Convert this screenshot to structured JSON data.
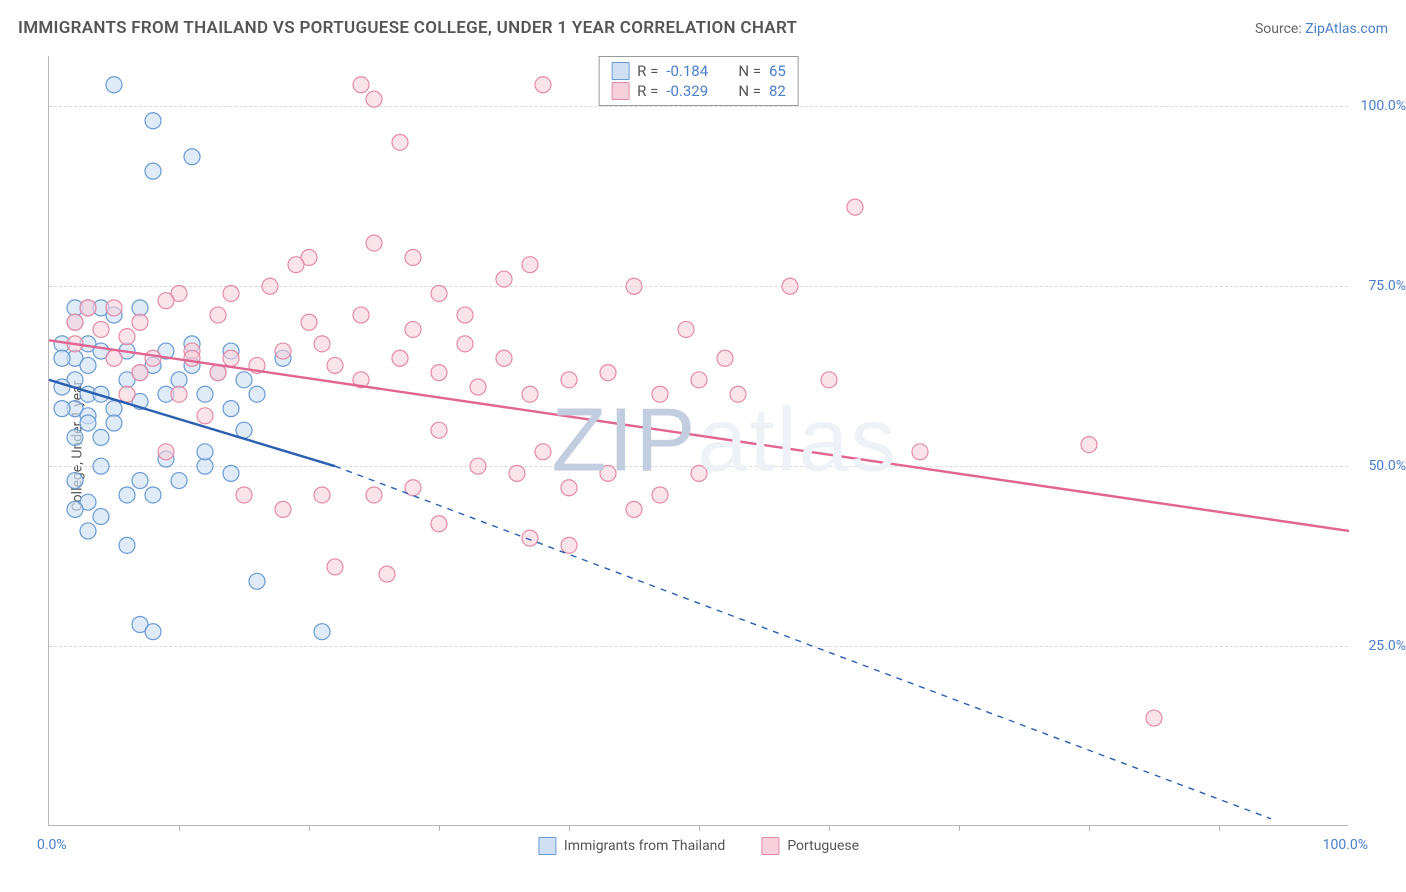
{
  "header": {
    "title": "IMMIGRANTS FROM THAILAND VS PORTUGUESE COLLEGE, UNDER 1 YEAR CORRELATION CHART",
    "source_prefix": "Source: ",
    "source_link": "ZipAtlas.com"
  },
  "watermark": {
    "dark": "ZIP",
    "light": "atlas"
  },
  "chart": {
    "type": "scatter",
    "ylabel": "College, Under 1 year",
    "xlim": [
      0,
      100
    ],
    "ylim": [
      0,
      107
    ],
    "ytick_values": [
      25,
      50,
      75,
      100
    ],
    "ytick_labels": [
      "25.0%",
      "50.0%",
      "75.0%",
      "100.0%"
    ],
    "xtick_values": [
      10,
      20,
      30,
      40,
      50,
      60,
      70,
      80,
      90
    ],
    "xlabel_0": "0.0%",
    "xlabel_100": "100.0%",
    "grid_color": "#d9d9d9",
    "axis_color": "#b6b6b6",
    "tick_label_color": "#4a7ec9",
    "background_color": "#ffffff",
    "marker_radius": 8,
    "marker_stroke_width": 1.2,
    "series": [
      {
        "key": "thailand",
        "label": "Immigrants from Thailand",
        "fill": "#cfe0f5",
        "stroke": "#6a9ad4",
        "fill_opacity": 0.65,
        "line_color": "#2b5fb0",
        "line_width": 2.4,
        "r_value": "-0.184",
        "n_value": "65",
        "trend_solid": {
          "x1": 0,
          "y1": 62,
          "x2": 22,
          "y2": 50
        },
        "trend_dash": {
          "x1": 22,
          "y1": 50,
          "x2": 94,
          "y2": 1
        },
        "points": [
          [
            5,
            103
          ],
          [
            8,
            98
          ],
          [
            11,
            93
          ],
          [
            8,
            91
          ],
          [
            2,
            72
          ],
          [
            3,
            72
          ],
          [
            2,
            70
          ],
          [
            3,
            67
          ],
          [
            2,
            65
          ],
          [
            3,
            64
          ],
          [
            2,
            62
          ],
          [
            3,
            60
          ],
          [
            2,
            58
          ],
          [
            3,
            57
          ],
          [
            4,
            60
          ],
          [
            6,
            62
          ],
          [
            5,
            58
          ],
          [
            7,
            59
          ],
          [
            8,
            64
          ],
          [
            9,
            60
          ],
          [
            10,
            62
          ],
          [
            11,
            64
          ],
          [
            12,
            60
          ],
          [
            13,
            63
          ],
          [
            15,
            62
          ],
          [
            16,
            60
          ],
          [
            18,
            65
          ],
          [
            12,
            50
          ],
          [
            9,
            51
          ],
          [
            7,
            48
          ],
          [
            6,
            46
          ],
          [
            4,
            50
          ],
          [
            3,
            45
          ],
          [
            4,
            43
          ],
          [
            2,
            44
          ],
          [
            2,
            48
          ],
          [
            3,
            41
          ],
          [
            6,
            39
          ],
          [
            8,
            46
          ],
          [
            10,
            48
          ],
          [
            14,
            49
          ],
          [
            7,
            28
          ],
          [
            8,
            27
          ],
          [
            21,
            27
          ],
          [
            16,
            34
          ],
          [
            12,
            52
          ],
          [
            15,
            55
          ],
          [
            14,
            58
          ],
          [
            4,
            54
          ],
          [
            3,
            56
          ],
          [
            5,
            56
          ],
          [
            2,
            54
          ],
          [
            4,
            66
          ],
          [
            6,
            66
          ],
          [
            7,
            63
          ],
          [
            9,
            66
          ],
          [
            11,
            67
          ],
          [
            14,
            66
          ],
          [
            4,
            72
          ],
          [
            5,
            71
          ],
          [
            7,
            72
          ],
          [
            1,
            67
          ],
          [
            1,
            65
          ],
          [
            1,
            61
          ],
          [
            1,
            58
          ]
        ]
      },
      {
        "key": "portuguese",
        "label": "Portuguese",
        "fill": "#f6d1db",
        "stroke": "#e48ba5",
        "fill_opacity": 0.6,
        "line_color": "#e06590",
        "line_width": 2.4,
        "r_value": "-0.329",
        "n_value": "82",
        "trend_solid": {
          "x1": 0,
          "y1": 67.5,
          "x2": 100,
          "y2": 41
        },
        "trend_dash": null,
        "points": [
          [
            24,
            103
          ],
          [
            25,
            101
          ],
          [
            38,
            103
          ],
          [
            27,
            95
          ],
          [
            62,
            86
          ],
          [
            25,
            81
          ],
          [
            20,
            79
          ],
          [
            19,
            78
          ],
          [
            28,
            79
          ],
          [
            37,
            78
          ],
          [
            35,
            76
          ],
          [
            32,
            71
          ],
          [
            30,
            74
          ],
          [
            45,
            75
          ],
          [
            57,
            75
          ],
          [
            17,
            75
          ],
          [
            14,
            74
          ],
          [
            13,
            71
          ],
          [
            11,
            66
          ],
          [
            10,
            74
          ],
          [
            9,
            73
          ],
          [
            7,
            70
          ],
          [
            6,
            68
          ],
          [
            5,
            72
          ],
          [
            4,
            69
          ],
          [
            3,
            72
          ],
          [
            2,
            70
          ],
          [
            2,
            67
          ],
          [
            5,
            65
          ],
          [
            8,
            65
          ],
          [
            11,
            65
          ],
          [
            14,
            65
          ],
          [
            18,
            66
          ],
          [
            21,
            67
          ],
          [
            22,
            64
          ],
          [
            24,
            62
          ],
          [
            27,
            65
          ],
          [
            30,
            63
          ],
          [
            33,
            61
          ],
          [
            35,
            65
          ],
          [
            37,
            60
          ],
          [
            40,
            62
          ],
          [
            43,
            63
          ],
          [
            47,
            60
          ],
          [
            50,
            62
          ],
          [
            53,
            60
          ],
          [
            60,
            62
          ],
          [
            67,
            52
          ],
          [
            80,
            53
          ],
          [
            85,
            15
          ],
          [
            30,
            55
          ],
          [
            33,
            50
          ],
          [
            36,
            49
          ],
          [
            38,
            52
          ],
          [
            40,
            47
          ],
          [
            43,
            49
          ],
          [
            45,
            44
          ],
          [
            47,
            46
          ],
          [
            50,
            49
          ],
          [
            37,
            40
          ],
          [
            40,
            39
          ],
          [
            26,
            35
          ],
          [
            22,
            36
          ],
          [
            18,
            44
          ],
          [
            15,
            46
          ],
          [
            16,
            64
          ],
          [
            13,
            63
          ],
          [
            10,
            60
          ],
          [
            12,
            57
          ],
          [
            9,
            52
          ],
          [
            7,
            63
          ],
          [
            6,
            60
          ],
          [
            21,
            46
          ],
          [
            25,
            46
          ],
          [
            28,
            47
          ],
          [
            30,
            42
          ],
          [
            20,
            70
          ],
          [
            24,
            71
          ],
          [
            28,
            69
          ],
          [
            32,
            67
          ],
          [
            49,
            69
          ],
          [
            52,
            65
          ]
        ]
      }
    ],
    "top_legend": {
      "r_label": "R =",
      "n_label": "N ="
    },
    "bottom_legend_labels": {
      "thailand": "Immigrants from Thailand",
      "portuguese": "Portuguese"
    }
  }
}
